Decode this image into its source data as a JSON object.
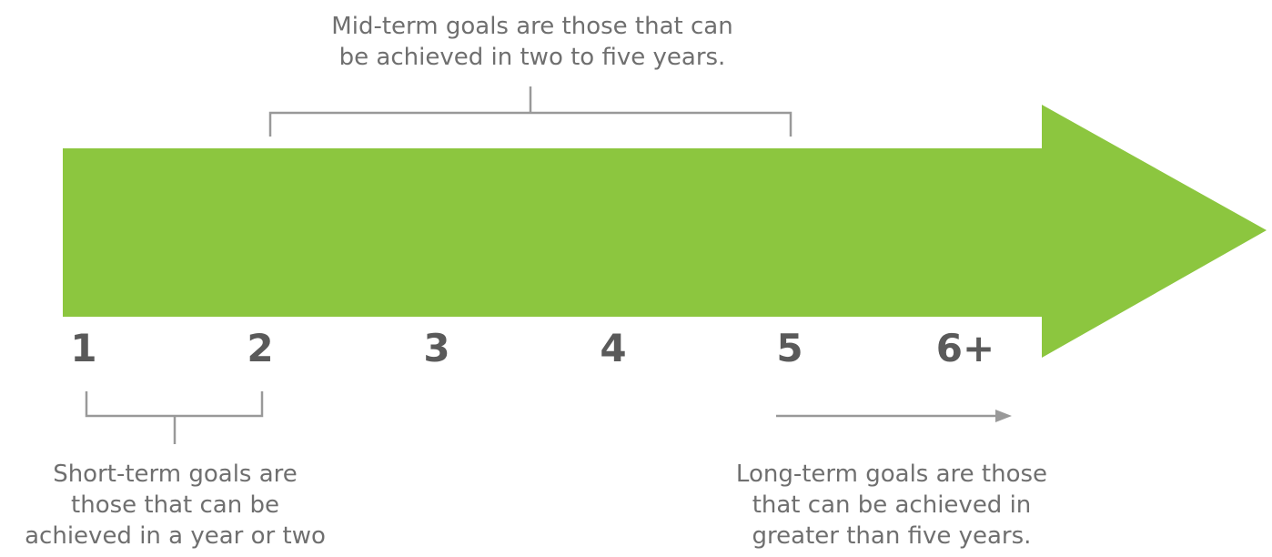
{
  "colors": {
    "arrow": "#8cc63f",
    "bracket": "#999999",
    "text": "#6f6f6f",
    "year_label": "#5a5a5a"
  },
  "timeline": {
    "years": [
      "1",
      "2",
      "3",
      "4",
      "5",
      "6+"
    ]
  },
  "captions": {
    "mid_term": "Mid-term goals are those that can\nbe achieved in two to five years.",
    "short_term": "Short-term goals are\nthose that can be\nachieved  in a year or two",
    "long_term": "Long-term goals are those\nthat can be achieved in\ngreater than five years."
  }
}
